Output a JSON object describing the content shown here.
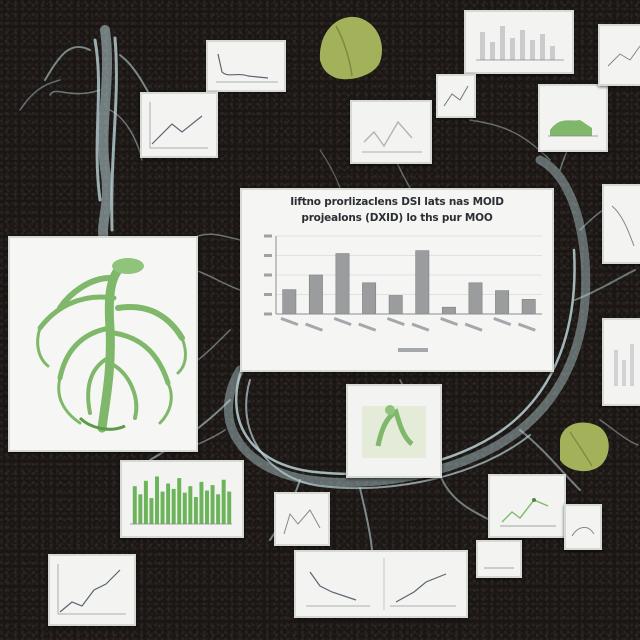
{
  "scene": {
    "background": "#1a1614",
    "root_color": "#b9d2d6",
    "plant_green": "#7fb86a",
    "leaf_green": "#a3b25a",
    "bar_gray": "#9a9c9e",
    "bar_green": "#6bb45a"
  },
  "main_chart": {
    "title_line_1": "Iiftno prorlizaclens DSI lats nas MOID",
    "title_line_2": "projealons (DXID) lo ths pur MOO",
    "chart_data": {
      "type": "bar",
      "values": [
        25,
        40,
        62,
        32,
        19,
        65,
        7,
        32,
        24,
        15
      ],
      "ylim": [
        0,
        80
      ]
    }
  },
  "green_bar_card": {
    "chart_data": {
      "type": "bar",
      "values": [
        70,
        55,
        80,
        48,
        88,
        60,
        75,
        65,
        85,
        58,
        70,
        50,
        78,
        62,
        72,
        55,
        82,
        60
      ]
    }
  }
}
